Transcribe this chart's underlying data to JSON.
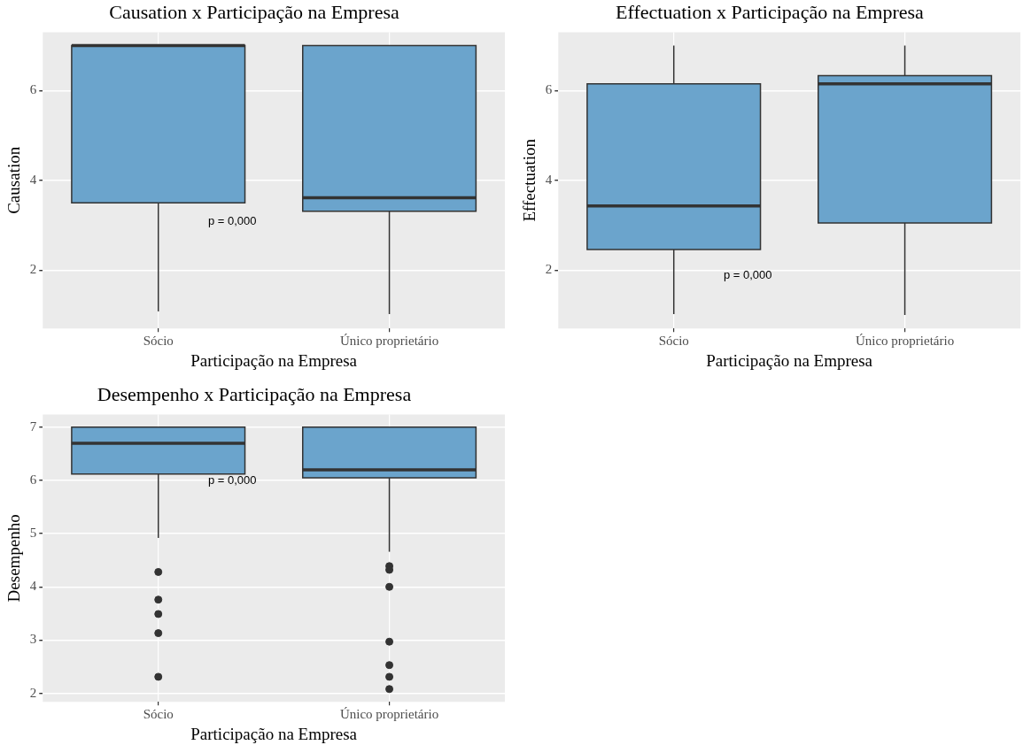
{
  "chart_data": [
    {
      "type": "box",
      "title": "Causation x Participação na Empresa",
      "xlabel": "Participação na Empresa",
      "ylabel": "Causation",
      "categories": [
        "Sócio",
        "Único proprietário"
      ],
      "color": "#6ba4cc",
      "boxes": [
        {
          "low": 1.08,
          "q1": 3.5,
          "median": 7,
          "q3": 7,
          "high": 7
        },
        {
          "low": 1.02,
          "q1": 3.31,
          "median": 3.61,
          "q3": 7,
          "high": 7
        }
      ],
      "ylim": [
        0.7,
        7.3
      ],
      "yticks": [
        2,
        4,
        6
      ],
      "grid": true,
      "legend": false,
      "annotations": [
        "p = 0,000"
      ]
    },
    {
      "type": "box",
      "title": "Effectuation x Participação na Empresa",
      "xlabel": "Participação na Empresa",
      "ylabel": "Effectuation",
      "categories": [
        "Sócio",
        "Único proprietário"
      ],
      "color": "#6ba4cc",
      "boxes": [
        {
          "low": 1.02,
          "q1": 2.46,
          "median": 3.43,
          "q3": 6.15,
          "high": 7
        },
        {
          "low": 1.0,
          "q1": 3.05,
          "median": 6.15,
          "q3": 6.33,
          "high": 7
        }
      ],
      "ylim": [
        0.7,
        7.3
      ],
      "yticks": [
        2,
        4,
        6
      ],
      "grid": true,
      "legend": false,
      "annotations": [
        "p = 0,000"
      ]
    },
    {
      "type": "box",
      "title": "Desempenho x Participação na Empresa",
      "xlabel": "Participação na Empresa",
      "ylabel": "Desempenho",
      "categories": [
        "Sócio",
        "Único proprietário"
      ],
      "color": "#6ba4cc",
      "boxes": [
        {
          "low": 4.92,
          "q1": 6.12,
          "median": 6.7,
          "q3": 7,
          "high": 7,
          "outliers": [
            4.28,
            3.76,
            3.49,
            3.13,
            2.31
          ]
        },
        {
          "low": 4.66,
          "q1": 6.05,
          "median": 6.2,
          "q3": 7,
          "high": 7,
          "outliers": [
            4.39,
            4.32,
            4.0,
            2.97,
            2.53,
            2.31,
            2.08
          ]
        }
      ],
      "ylim": [
        1.84,
        7.24
      ],
      "yticks": [
        2,
        3,
        4,
        5,
        6,
        7
      ],
      "grid": true,
      "legend": false,
      "annotations": [
        "p = 0,000"
      ]
    }
  ]
}
